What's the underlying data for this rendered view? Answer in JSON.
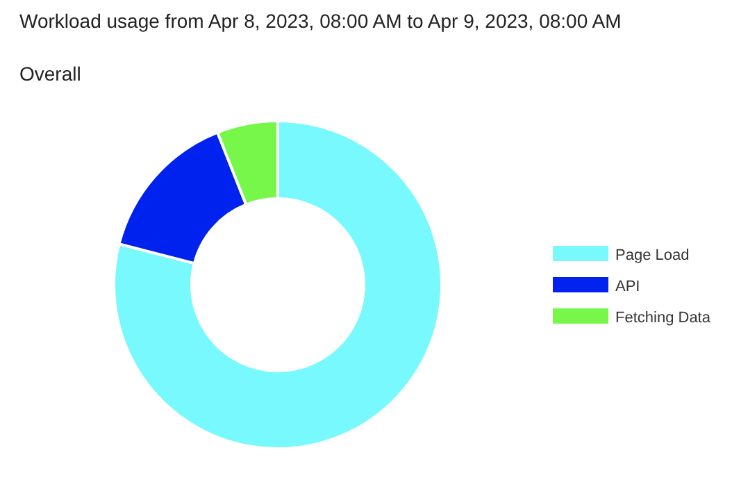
{
  "chart_data": {
    "type": "donut",
    "title": "Workload usage from Apr 8, 2023, 08:00 AM to Apr 9, 2023, 08:00 AM",
    "subtitle": "Overall",
    "categories": [
      "Page Load",
      "API",
      "Fetching Data"
    ],
    "values": [
      79,
      15,
      6
    ],
    "colors": [
      "#77f9fd",
      "#0022ee",
      "#77f74a"
    ],
    "legend": "right"
  }
}
